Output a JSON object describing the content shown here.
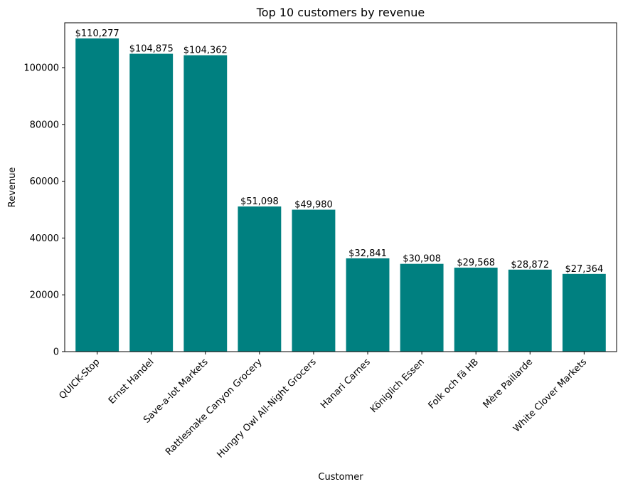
{
  "chart_data": {
    "type": "bar",
    "title": "Top 10 customers by revenue",
    "xlabel": "Customer",
    "ylabel": "Revenue",
    "categories": [
      "QUICK-Stop",
      "Ernst Handel",
      "Save-a-lot Markets",
      "Rattlesnake Canyon Grocery",
      "Hungry Owl All-Night Grocers",
      "Hanari Carnes",
      "Königlich Essen",
      "Folk och fä HB",
      "Mère Paillarde",
      "White Clover Markets"
    ],
    "values": [
      110277,
      104875,
      104362,
      51098,
      49980,
      32841,
      30908,
      29568,
      28872,
      27364
    ],
    "data_labels": [
      "$110,277",
      "$104,875",
      "$104,362",
      "$51,098",
      "$49,980",
      "$32,841",
      "$30,908",
      "$29,568",
      "$28,872",
      "$27,364"
    ],
    "ylim": [
      0,
      115791
    ],
    "yticks": [
      0,
      20000,
      40000,
      60000,
      80000,
      100000
    ],
    "ytick_labels": [
      "0",
      "20000",
      "40000",
      "60000",
      "80000",
      "100000"
    ],
    "bar_color": "#008080",
    "grid": false,
    "legend": "none"
  }
}
